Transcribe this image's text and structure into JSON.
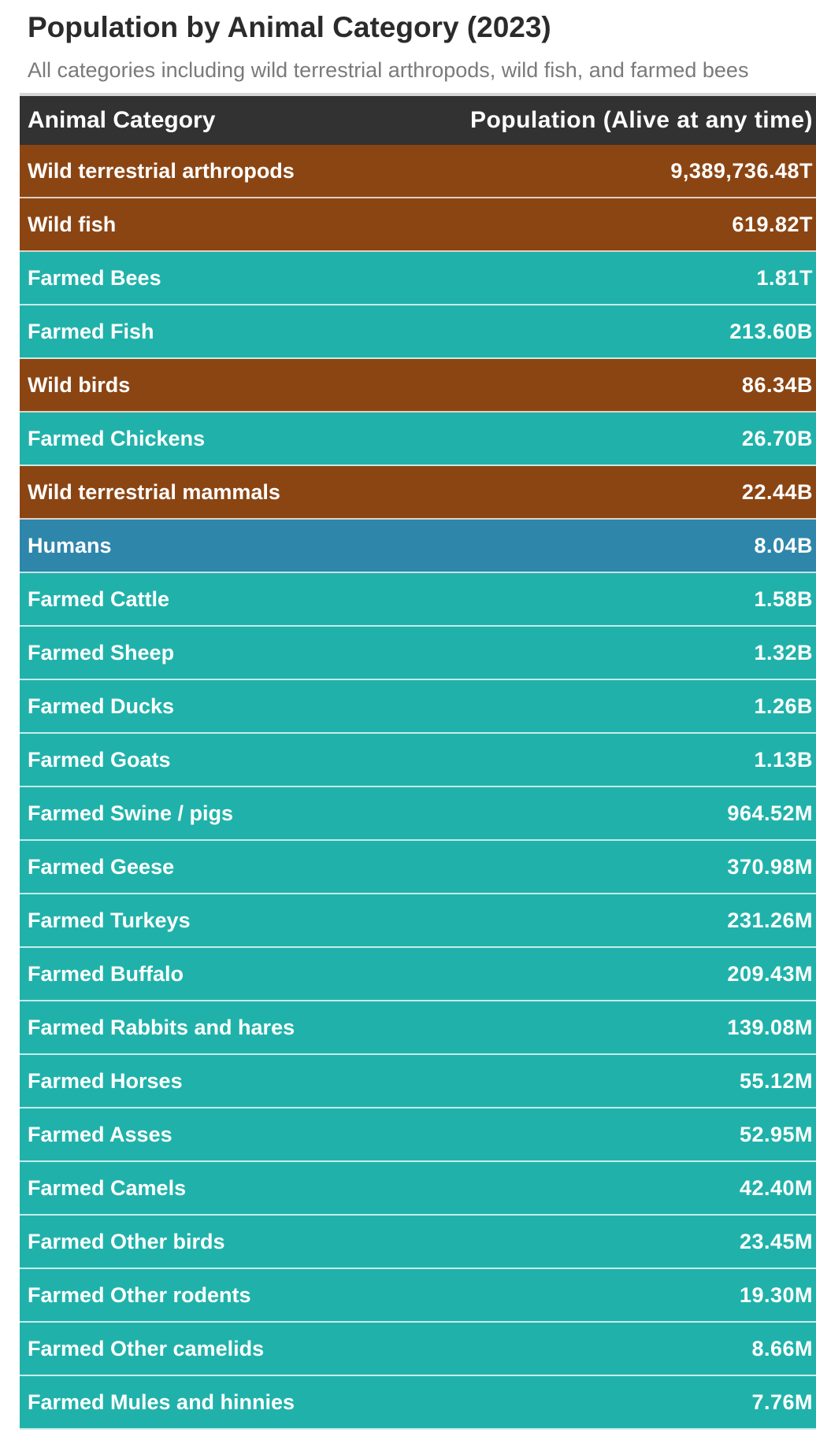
{
  "title": "Population by Animal Category (2023)",
  "subtitle": "All categories including wild terrestrial arthropods, wild fish, and farmed bees",
  "colors": {
    "wild": "#8b4513",
    "farmed": "#20b2aa",
    "humans": "#2e86ab",
    "header": "#323232"
  },
  "chart_data": {
    "type": "table",
    "title": "Population by Animal Category (2023)",
    "subtitle": "All categories including wild terrestrial arthropods, wild fish, and farmed bees",
    "columns": [
      "Animal Category",
      "Population (Alive at any time)"
    ],
    "rows": [
      {
        "category": "Wild terrestrial arthropods",
        "population": "9,389,736.48T",
        "group": "wild"
      },
      {
        "category": "Wild fish",
        "population": "619.82T",
        "group": "wild"
      },
      {
        "category": "Farmed Bees",
        "population": "1.81T",
        "group": "farmed"
      },
      {
        "category": "Farmed Fish",
        "population": "213.60B",
        "group": "farmed"
      },
      {
        "category": "Wild birds",
        "population": "86.34B",
        "group": "wild"
      },
      {
        "category": "Farmed Chickens",
        "population": "26.70B",
        "group": "farmed"
      },
      {
        "category": "Wild terrestrial mammals",
        "population": "22.44B",
        "group": "wild"
      },
      {
        "category": "Humans",
        "population": "8.04B",
        "group": "humans"
      },
      {
        "category": "Farmed Cattle",
        "population": "1.58B",
        "group": "farmed"
      },
      {
        "category": "Farmed Sheep",
        "population": "1.32B",
        "group": "farmed"
      },
      {
        "category": "Farmed Ducks",
        "population": "1.26B",
        "group": "farmed"
      },
      {
        "category": "Farmed Goats",
        "population": "1.13B",
        "group": "farmed"
      },
      {
        "category": "Farmed Swine / pigs",
        "population": "964.52M",
        "group": "farmed"
      },
      {
        "category": "Farmed Geese",
        "population": "370.98M",
        "group": "farmed"
      },
      {
        "category": "Farmed Turkeys",
        "population": "231.26M",
        "group": "farmed"
      },
      {
        "category": "Farmed Buffalo",
        "population": "209.43M",
        "group": "farmed"
      },
      {
        "category": "Farmed Rabbits and hares",
        "population": "139.08M",
        "group": "farmed"
      },
      {
        "category": "Farmed Horses",
        "population": "55.12M",
        "group": "farmed"
      },
      {
        "category": "Farmed Asses",
        "population": "52.95M",
        "group": "farmed"
      },
      {
        "category": "Farmed Camels",
        "population": "42.40M",
        "group": "farmed"
      },
      {
        "category": "Farmed Other birds",
        "population": "23.45M",
        "group": "farmed"
      },
      {
        "category": "Farmed Other rodents",
        "population": "19.30M",
        "group": "farmed"
      },
      {
        "category": "Farmed Other camelids",
        "population": "8.66M",
        "group": "farmed"
      },
      {
        "category": "Farmed Mules and hinnies",
        "population": "7.76M",
        "group": "farmed"
      }
    ]
  }
}
